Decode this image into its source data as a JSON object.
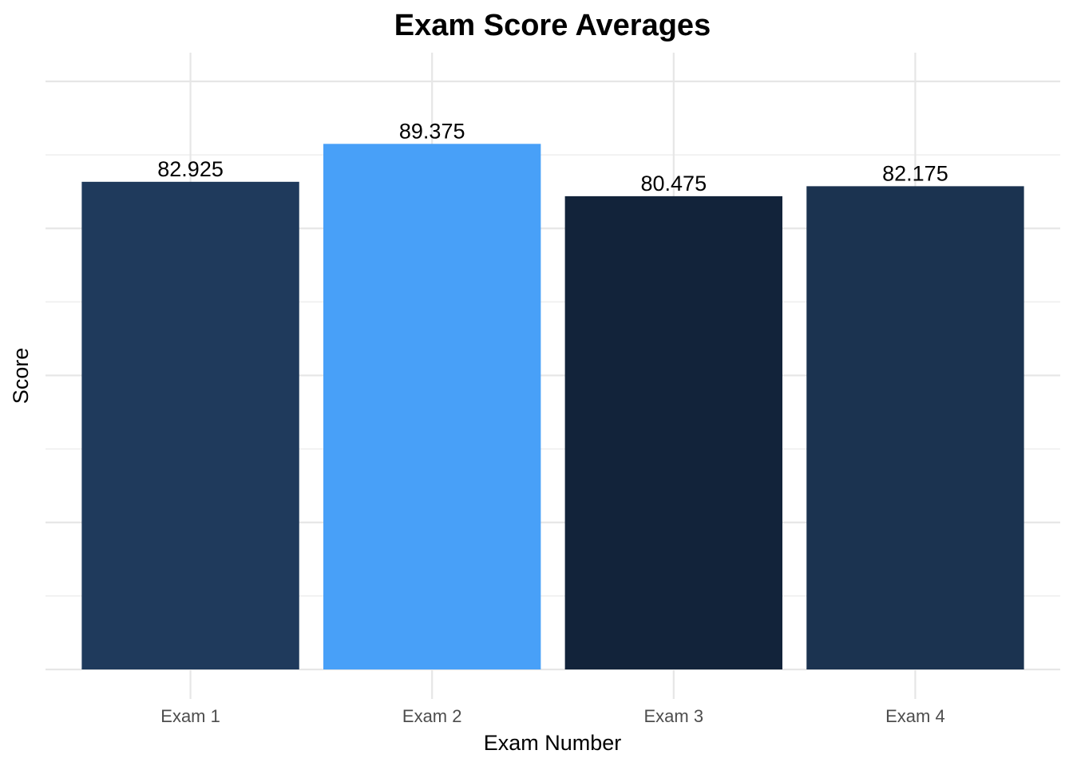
{
  "chart_data": {
    "type": "bar",
    "title": "Exam Score Averages",
    "xlabel": "Exam Number",
    "ylabel": "Score",
    "categories": [
      "Exam 1",
      "Exam 2",
      "Exam 3",
      "Exam 4"
    ],
    "values": [
      82.925,
      89.375,
      80.475,
      82.175
    ],
    "data_labels": [
      "82.925",
      "89.375",
      "80.475",
      "82.175"
    ],
    "colors": [
      "#1f3a5c",
      "#48a0f8",
      "#12233a",
      "#1b3350"
    ],
    "ylim": [
      0,
      100
    ],
    "y_tick_labels_shown": false,
    "grid": true,
    "legend": "none"
  }
}
